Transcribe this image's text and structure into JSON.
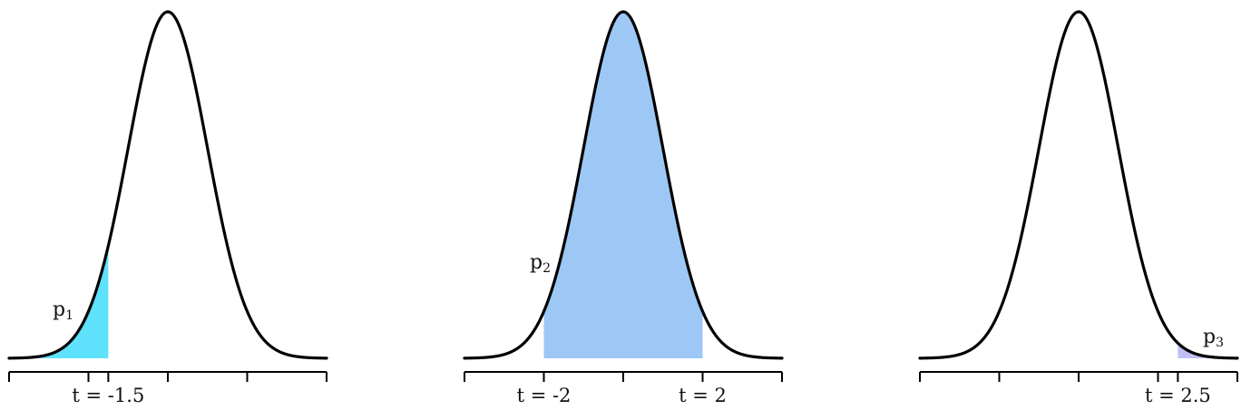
{
  "panels": [
    {
      "shade": {
        "from": -4,
        "to": -1.5,
        "color": "#5ee1fb"
      },
      "region_label": {
        "base": "p",
        "subscript": "1"
      },
      "tick_labels": [
        {
          "at": -1.5,
          "text": "t = -1.5"
        }
      ]
    },
    {
      "shade": {
        "from": -2,
        "to": 2,
        "color": "#9dc8f5"
      },
      "region_label": {
        "base": "p",
        "subscript": "2"
      },
      "tick_labels": [
        {
          "at": -2,
          "text": "t = -2"
        },
        {
          "at": 2,
          "text": "t = 2"
        }
      ]
    },
    {
      "shade": {
        "from": 2.5,
        "to": 4,
        "color": "#bfbff6"
      },
      "region_label": {
        "base": "p",
        "subscript": "3"
      },
      "tick_labels": [
        {
          "at": 2.5,
          "text": "t = 2.5"
        }
      ]
    }
  ],
  "axis": {
    "x_range": [
      -4,
      4
    ],
    "ticks": [
      -4,
      -2,
      0,
      2,
      4
    ]
  }
}
